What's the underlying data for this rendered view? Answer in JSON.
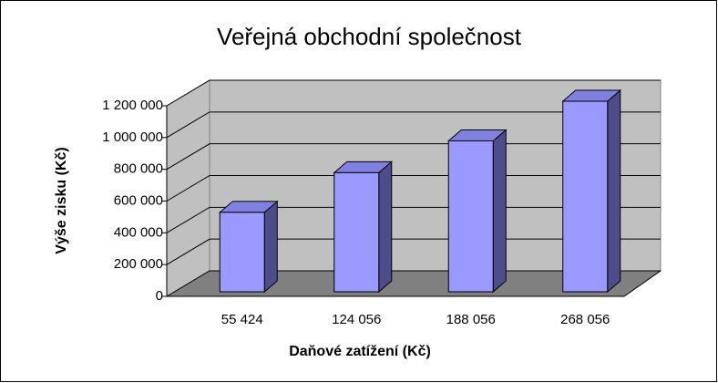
{
  "chart_data": {
    "type": "bar3d",
    "title": "Veřejná obchodní společnost",
    "x_label": "Daňové zatížení (Kč)",
    "y_label": "Výše zisku (Kč)",
    "categories": [
      "55 424",
      "124 056",
      "188 056",
      "268 056"
    ],
    "values": [
      500000,
      750000,
      950000,
      1200000
    ],
    "color": "#9999ff",
    "ylim": [
      0,
      1200000
    ],
    "yticks": [
      0,
      {
        "value": 200000,
        "label": "200 000"
      },
      {
        "value": 400000,
        "label": "400 000"
      },
      {
        "value": 600000,
        "label": "600 000"
      },
      {
        "value": 800000,
        "label": "800 000"
      },
      {
        "value": 1000000,
        "label": "1 000 000"
      },
      {
        "value": 1200000,
        "label": "1 200 000"
      }
    ],
    "grid": true
  }
}
